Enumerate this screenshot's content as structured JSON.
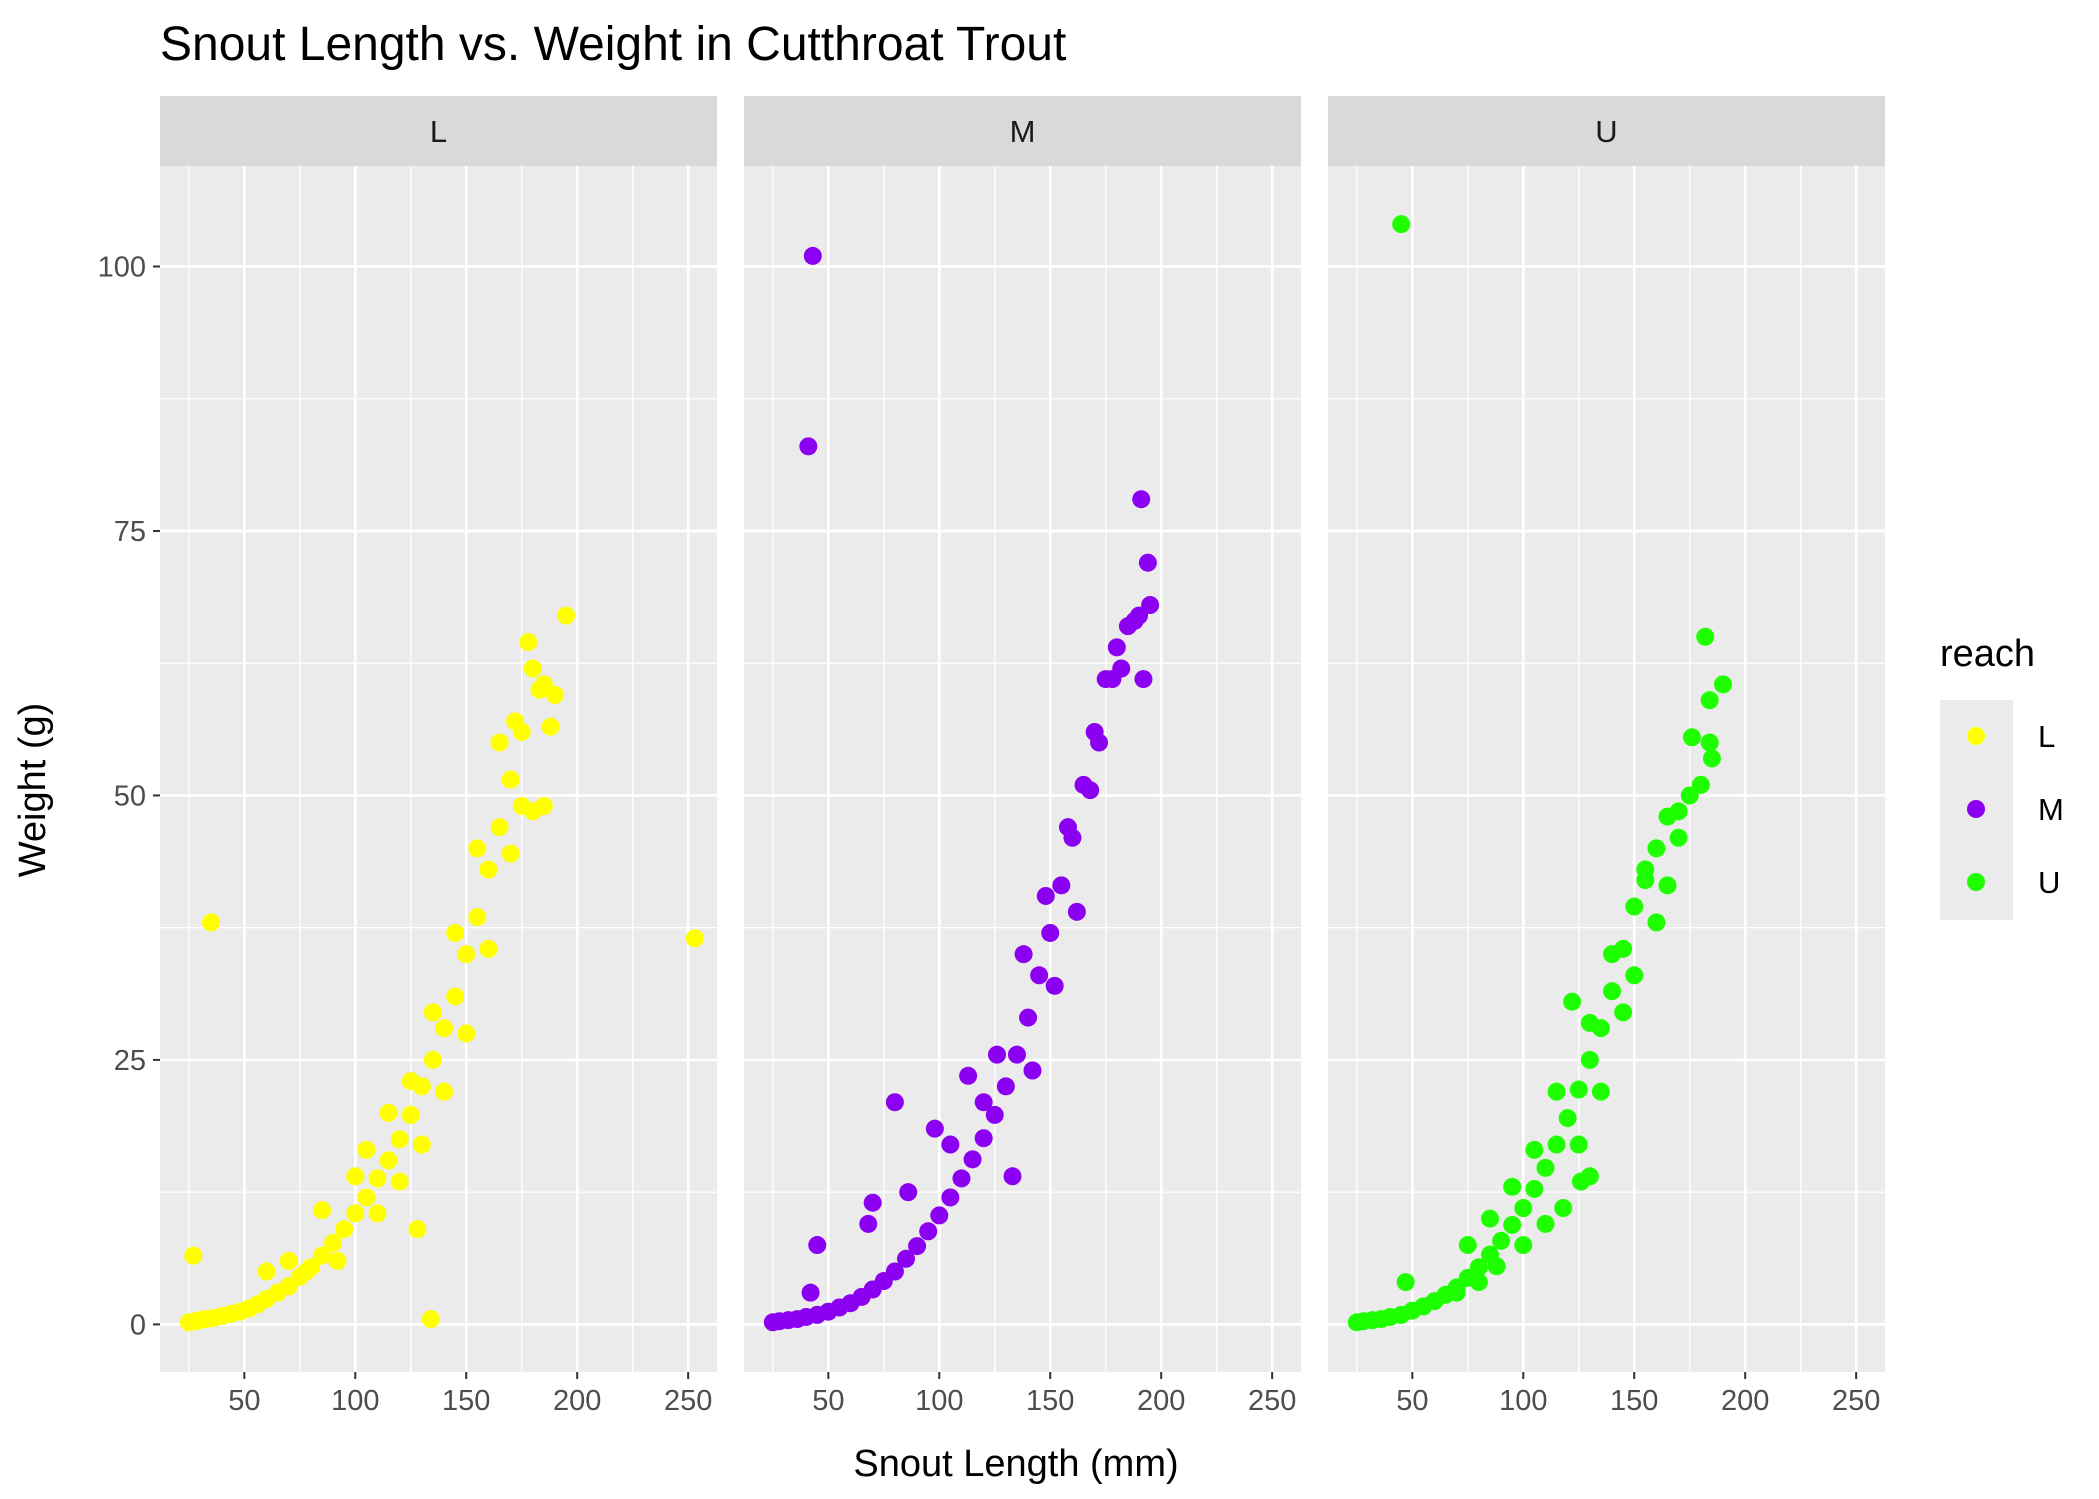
{
  "chart_data": {
    "type": "scatter",
    "title": "Snout Length vs. Weight in Cutthroat Trout",
    "xlabel": "Snout Length (mm)",
    "ylabel": "Weight (g)",
    "xlim": [
      12,
      263
    ],
    "ylim": [
      -4.5,
      109.5
    ],
    "x_ticks": [
      50,
      100,
      150,
      200,
      250
    ],
    "y_ticks": [
      0,
      25,
      50,
      75,
      100
    ],
    "grid": true,
    "facet_by": "reach",
    "legend": {
      "title": "reach",
      "position": "right",
      "entries": [
        {
          "label": "L",
          "color": "#FFFF00"
        },
        {
          "label": "M",
          "color": "#8B00F0"
        },
        {
          "label": "U",
          "color": "#1EFF00"
        }
      ]
    },
    "series": [
      {
        "name": "L",
        "color": "#FFFF00",
        "points": [
          [
            25,
            0.2
          ],
          [
            28,
            0.3
          ],
          [
            30,
            0.4
          ],
          [
            33,
            0.5
          ],
          [
            36,
            0.6
          ],
          [
            40,
            0.8
          ],
          [
            44,
            1.0
          ],
          [
            48,
            1.2
          ],
          [
            52,
            1.5
          ],
          [
            56,
            1.9
          ],
          [
            60,
            2.4
          ],
          [
            65,
            3.0
          ],
          [
            70,
            3.6
          ],
          [
            75,
            4.5
          ],
          [
            80,
            5.4
          ],
          [
            85,
            6.5
          ],
          [
            90,
            7.7
          ],
          [
            95,
            9.0
          ],
          [
            100,
            10.5
          ],
          [
            105,
            12.0
          ],
          [
            110,
            13.8
          ],
          [
            115,
            15.5
          ],
          [
            120,
            17.5
          ],
          [
            125,
            19.8
          ],
          [
            130,
            22.5
          ],
          [
            135,
            25.0
          ],
          [
            140,
            28.0
          ],
          [
            145,
            31.0
          ],
          [
            150,
            35.0
          ],
          [
            155,
            38.5
          ],
          [
            160,
            43.0
          ],
          [
            165,
            47.0
          ],
          [
            170,
            51.5
          ],
          [
            175,
            56.0
          ],
          [
            180,
            62.0
          ],
          [
            185,
            60.5
          ],
          [
            190,
            59.5
          ],
          [
            195,
            67.0
          ],
          [
            60,
            5.0
          ],
          [
            70,
            6.0
          ],
          [
            78,
            5.0
          ],
          [
            85,
            10.8
          ],
          [
            92,
            6.0
          ],
          [
            100,
            14.0
          ],
          [
            105,
            16.5
          ],
          [
            110,
            10.5
          ],
          [
            115,
            20.0
          ],
          [
            120,
            13.5
          ],
          [
            125,
            23.0
          ],
          [
            130,
            17.0
          ],
          [
            135,
            29.5
          ],
          [
            140,
            22.0
          ],
          [
            145,
            37.0
          ],
          [
            150,
            27.5
          ],
          [
            155,
            45.0
          ],
          [
            160,
            35.5
          ],
          [
            165,
            55.0
          ],
          [
            170,
            44.5
          ],
          [
            172,
            57.0
          ],
          [
            175,
            49.0
          ],
          [
            178,
            64.5
          ],
          [
            180,
            48.5
          ],
          [
            183,
            60.0
          ],
          [
            185,
            49.0
          ],
          [
            188,
            56.5
          ],
          [
            128,
            9.0
          ],
          [
            134,
            0.5
          ],
          [
            27,
            6.5
          ],
          [
            35,
            38.0
          ],
          [
            253,
            36.5
          ]
        ]
      },
      {
        "name": "M",
        "color": "#8B00F0",
        "points": [
          [
            25,
            0.2
          ],
          [
            28,
            0.3
          ],
          [
            32,
            0.4
          ],
          [
            36,
            0.5
          ],
          [
            40,
            0.7
          ],
          [
            45,
            0.9
          ],
          [
            50,
            1.2
          ],
          [
            55,
            1.6
          ],
          [
            60,
            2.0
          ],
          [
            65,
            2.6
          ],
          [
            70,
            3.3
          ],
          [
            75,
            4.1
          ],
          [
            80,
            5.0
          ],
          [
            85,
            6.2
          ],
          [
            90,
            7.4
          ],
          [
            95,
            8.8
          ],
          [
            100,
            10.3
          ],
          [
            105,
            12.0
          ],
          [
            110,
            13.8
          ],
          [
            115,
            15.6
          ],
          [
            120,
            17.6
          ],
          [
            125,
            19.8
          ],
          [
            130,
            22.5
          ],
          [
            135,
            25.5
          ],
          [
            140,
            29.0
          ],
          [
            145,
            33.0
          ],
          [
            150,
            37.0
          ],
          [
            155,
            41.5
          ],
          [
            160,
            46.0
          ],
          [
            165,
            51.0
          ],
          [
            170,
            56.0
          ],
          [
            175,
            61.0
          ],
          [
            180,
            64.0
          ],
          [
            185,
            66.0
          ],
          [
            190,
            67.0
          ],
          [
            195,
            68.0
          ],
          [
            191,
            78.0
          ],
          [
            194,
            72.0
          ],
          [
            70,
            11.5
          ],
          [
            80,
            21.0
          ],
          [
            86,
            12.5
          ],
          [
            98,
            18.5
          ],
          [
            105,
            17.0
          ],
          [
            113,
            23.5
          ],
          [
            120,
            21.0
          ],
          [
            126,
            25.5
          ],
          [
            133,
            14.0
          ],
          [
            138,
            35.0
          ],
          [
            142,
            24.0
          ],
          [
            148,
            40.5
          ],
          [
            152,
            32.0
          ],
          [
            158,
            47.0
          ],
          [
            162,
            39.0
          ],
          [
            168,
            50.5
          ],
          [
            172,
            55.0
          ],
          [
            178,
            61.0
          ],
          [
            182,
            62.0
          ],
          [
            188,
            66.5
          ],
          [
            192,
            61.0
          ],
          [
            45,
            7.5
          ],
          [
            68,
            9.5
          ],
          [
            42,
            3.0
          ],
          [
            43,
            101.0
          ],
          [
            41,
            83.0
          ]
        ]
      },
      {
        "name": "U",
        "color": "#1EFF00",
        "points": [
          [
            25,
            0.2
          ],
          [
            28,
            0.3
          ],
          [
            32,
            0.4
          ],
          [
            36,
            0.5
          ],
          [
            40,
            0.7
          ],
          [
            45,
            0.9
          ],
          [
            50,
            1.3
          ],
          [
            55,
            1.7
          ],
          [
            60,
            2.2
          ],
          [
            65,
            2.8
          ],
          [
            70,
            3.5
          ],
          [
            75,
            4.4
          ],
          [
            80,
            5.4
          ],
          [
            85,
            6.6
          ],
          [
            90,
            7.9
          ],
          [
            95,
            9.4
          ],
          [
            100,
            11.0
          ],
          [
            105,
            12.8
          ],
          [
            110,
            14.8
          ],
          [
            115,
            17.0
          ],
          [
            120,
            19.5
          ],
          [
            125,
            22.2
          ],
          [
            130,
            25.0
          ],
          [
            135,
            28.0
          ],
          [
            140,
            31.5
          ],
          [
            145,
            35.5
          ],
          [
            150,
            39.5
          ],
          [
            155,
            43.0
          ],
          [
            160,
            45.0
          ],
          [
            165,
            48.0
          ],
          [
            170,
            48.5
          ],
          [
            175,
            50.0
          ],
          [
            180,
            51.0
          ],
          [
            185,
            53.5
          ],
          [
            190,
            60.5
          ],
          [
            182,
            65.0
          ],
          [
            184,
            59.0
          ],
          [
            176,
            55.5
          ],
          [
            184,
            55.0
          ],
          [
            170,
            46.0
          ],
          [
            165,
            41.5
          ],
          [
            160,
            38.0
          ],
          [
            155,
            42.0
          ],
          [
            150,
            33.0
          ],
          [
            145,
            29.5
          ],
          [
            140,
            35.0
          ],
          [
            135,
            22.0
          ],
          [
            130,
            28.5
          ],
          [
            125,
            17.0
          ],
          [
            122,
            30.5
          ],
          [
            118,
            11.0
          ],
          [
            115,
            22.0
          ],
          [
            110,
            9.5
          ],
          [
            105,
            16.5
          ],
          [
            100,
            7.5
          ],
          [
            95,
            13.0
          ],
          [
            88,
            5.5
          ],
          [
            85,
            10.0
          ],
          [
            80,
            4.0
          ],
          [
            75,
            7.5
          ],
          [
            70,
            3.0
          ],
          [
            47,
            4.0
          ],
          [
            126,
            13.5
          ],
          [
            130,
            14.0
          ],
          [
            45,
            104.0
          ]
        ]
      }
    ]
  }
}
